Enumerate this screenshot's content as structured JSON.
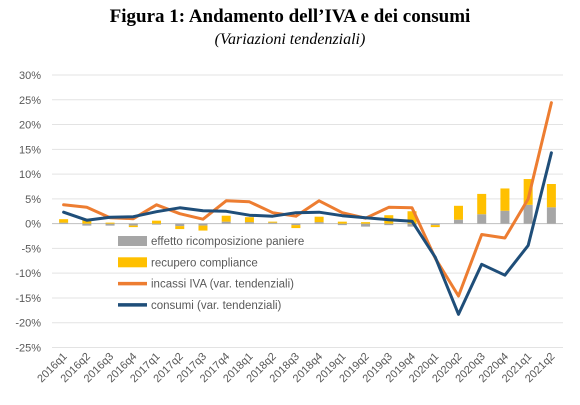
{
  "title": "Figura 1: Andamento dell’IVA e dei consumi",
  "subtitle": "(Variazioni tendenziali)",
  "chart_data": {
    "type": "bar",
    "categories": [
      "2016q1",
      "2016q2",
      "2016q3",
      "2016q4",
      "2017q1",
      "2017q2",
      "2017q3",
      "2017q4",
      "2018q1",
      "2018q2",
      "2018q3",
      "2018q4",
      "2019q1",
      "2019q2",
      "2019q3",
      "2019q4",
      "2020q1",
      "2020q2",
      "2020q3",
      "2020q4",
      "2021q1",
      "2021q2"
    ],
    "y_ticks": [
      "30%",
      "25%",
      "20%",
      "15%",
      "10%",
      "5%",
      "0%",
      "-5%",
      "-10%",
      "-15%",
      "-20%",
      "-25%"
    ],
    "ylim": [
      -25,
      30
    ],
    "grid": true,
    "legend_position": "left",
    "series": [
      {
        "name": "effetto ricomposizione paniere",
        "kind": "bar",
        "color": "#a6a6a6",
        "values": [
          0.2,
          -0.4,
          -0.4,
          -0.4,
          -0.2,
          -0.5,
          -0.4,
          0.4,
          0.3,
          0.2,
          -0.3,
          0.3,
          -0.3,
          -0.6,
          -0.3,
          -0.6,
          -0.3,
          0.8,
          1.9,
          2.6,
          3.8,
          3.3
        ]
      },
      {
        "name": "recupero compliance",
        "kind": "bar",
        "color": "#ffc000",
        "values": [
          0.7,
          1.0,
          0.2,
          -0.3,
          0.6,
          -0.6,
          -1.0,
          1.2,
          1.0,
          0.2,
          -0.6,
          1.1,
          0.4,
          0.3,
          1.7,
          2.5,
          -0.4,
          2.8,
          4.1,
          4.5,
          5.2,
          4.7
        ]
      },
      {
        "name": "incassi IVA (var. tendenziali)",
        "kind": "line",
        "color": "#ed7d31",
        "values": [
          3.8,
          3.3,
          1.2,
          1.0,
          3.8,
          2.0,
          0.9,
          4.6,
          4.4,
          2.2,
          1.5,
          4.6,
          2.2,
          1.1,
          3.3,
          3.2,
          -7.0,
          -14.6,
          -2.2,
          -2.9,
          5.0,
          24.4
        ]
      },
      {
        "name": "consumi (var. tendenziali)",
        "kind": "line",
        "color": "#1f4e79",
        "values": [
          2.3,
          0.7,
          1.3,
          1.4,
          2.4,
          3.2,
          2.6,
          2.5,
          1.7,
          1.5,
          2.2,
          2.3,
          1.6,
          1.2,
          0.8,
          0.5,
          -6.8,
          -18.3,
          -8.2,
          -10.4,
          -4.4,
          14.3
        ]
      }
    ]
  }
}
